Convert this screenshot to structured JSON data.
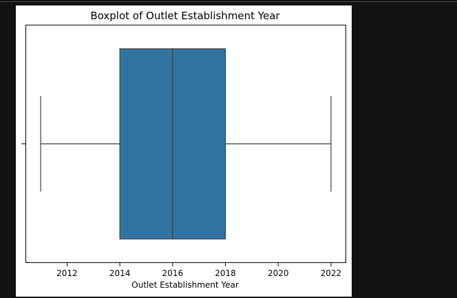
{
  "chart_data": {
    "type": "boxplot",
    "title": "Boxplot of Outlet Establishment Year",
    "xlabel": "Outlet Establishment Year",
    "ylabel": "",
    "xlim": [
      2010.45,
      2022.55
    ],
    "xticks": [
      2012,
      2014,
      2016,
      2018,
      2020,
      2022
    ],
    "grid": false,
    "orientation": "horizontal",
    "box": {
      "min": 2011,
      "q1": 2014,
      "median": 2016,
      "q3": 2018,
      "max": 2022
    },
    "colors": {
      "box_fill": "#3274a1",
      "line": "#3d3d3d",
      "background": "#121212"
    }
  }
}
